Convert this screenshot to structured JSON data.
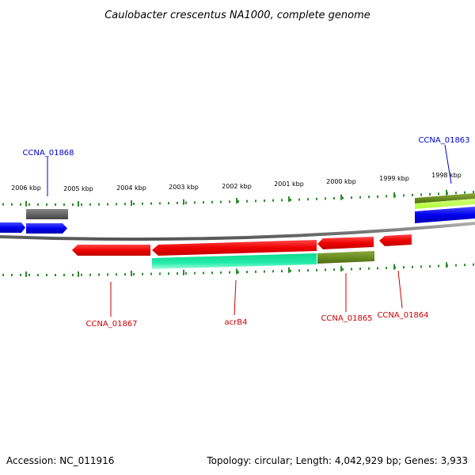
{
  "title": "Caulobacter crescentus NA1000, complete genome",
  "footer": {
    "accession": "Accession: NC_011916",
    "summary": "Topology: circular; Length: 4,042,929 bp; Genes: 3,933"
  },
  "colors": {
    "backbone": "#808080",
    "tick": "#2e8b2e",
    "gene_forward": "#0000ee",
    "gene_reverse": "#ee0000",
    "gray_feature": "#666666",
    "teal_feature": "#22e8a0",
    "olive_feature": "#6b8e23",
    "lime_feature": "#adff2f",
    "label_forward": "#0000cc",
    "label_reverse": "#cc0000"
  },
  "kbp_labels": [
    "2006 kbp",
    "2005 kbp",
    "2004 kbp",
    "2003 kbp",
    "2002 kbp",
    "2001 kbp",
    "2000 kbp",
    "1999 kbp",
    "1998 kbp"
  ],
  "genes": [
    {
      "id": "CCNA_01868",
      "label": "CCNA_01868",
      "strand": "forward"
    },
    {
      "id": "CCNA_01867",
      "label": "CCNA_01867",
      "strand": "reverse"
    },
    {
      "id": "acrB4",
      "label": "acrB4",
      "strand": "reverse"
    },
    {
      "id": "CCNA_01865",
      "label": "CCNA_01865",
      "strand": "reverse"
    },
    {
      "id": "CCNA_01864",
      "label": "CCNA_01864",
      "strand": "reverse"
    },
    {
      "id": "CCNA_01863",
      "label": "CCNA_01863",
      "strand": "forward"
    }
  ]
}
